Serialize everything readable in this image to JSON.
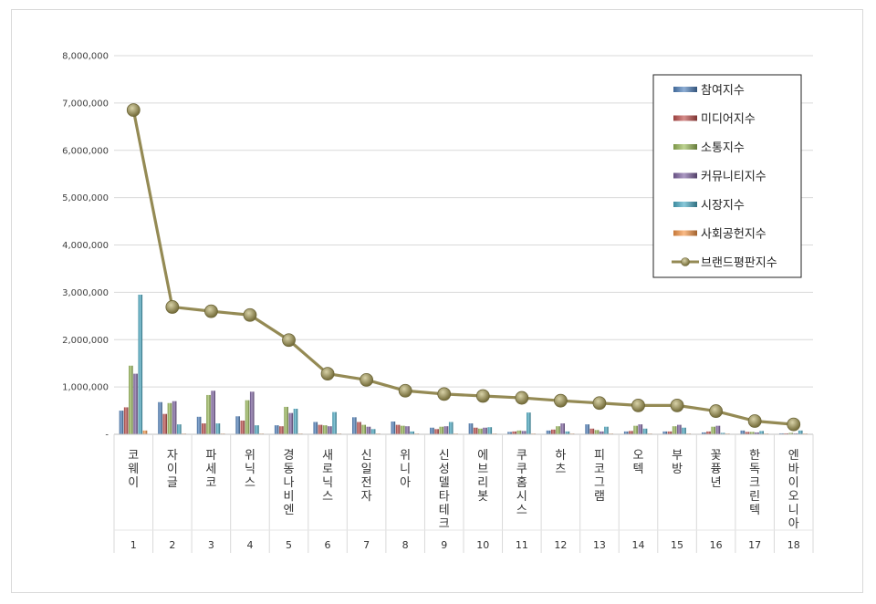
{
  "chart_data": {
    "type": "bar",
    "title": "",
    "xlabel": "",
    "ylabel": "",
    "ylim": [
      0,
      8000000
    ],
    "yticks": [
      0,
      1000000,
      2000000,
      3000000,
      4000000,
      5000000,
      6000000,
      7000000,
      8000000
    ],
    "ytick_labels": [
      "-",
      "1,000,000",
      "2,000,000",
      "3,000,000",
      "4,000,000",
      "5,000,000",
      "6,000,000",
      "7,000,000",
      "8,000,000"
    ],
    "grid": true,
    "legend_position": "top-right",
    "ranks": [
      "1",
      "2",
      "3",
      "4",
      "5",
      "6",
      "7",
      "8",
      "9",
      "10",
      "11",
      "12",
      "13",
      "14",
      "15",
      "16",
      "17",
      "18"
    ],
    "categories": [
      "코웨이",
      "자이글",
      "파세코",
      "위닉스",
      "경동나비엔",
      "새로닉스",
      "신일전자",
      "위니아",
      "신성델타테크",
      "에브리봇",
      "쿠쿠홈시스",
      "하츠",
      "피코그램",
      "오텍",
      "부방",
      "꽃퓽년",
      "한독크린텍",
      "엔바이오니아"
    ],
    "series": [
      {
        "name": "참여지수",
        "type": "bar",
        "color": "#4f81bd",
        "values": [
          500000,
          680000,
          370000,
          380000,
          190000,
          260000,
          360000,
          270000,
          140000,
          230000,
          50000,
          80000,
          210000,
          60000,
          60000,
          40000,
          80000,
          20000
        ]
      },
      {
        "name": "미디어지수",
        "type": "bar",
        "color": "#c0504d",
        "values": [
          570000,
          430000,
          230000,
          290000,
          170000,
          200000,
          260000,
          200000,
          110000,
          140000,
          60000,
          100000,
          120000,
          70000,
          60000,
          60000,
          50000,
          20000
        ]
      },
      {
        "name": "소통지수",
        "type": "bar",
        "color": "#9bbb59",
        "values": [
          1450000,
          660000,
          830000,
          720000,
          580000,
          190000,
          200000,
          180000,
          160000,
          120000,
          80000,
          170000,
          90000,
          180000,
          170000,
          160000,
          50000,
          30000
        ]
      },
      {
        "name": "커뮤니티지수",
        "type": "bar",
        "color": "#8064a2",
        "values": [
          1280000,
          700000,
          920000,
          900000,
          450000,
          170000,
          160000,
          170000,
          170000,
          140000,
          70000,
          230000,
          60000,
          210000,
          200000,
          180000,
          40000,
          20000
        ]
      },
      {
        "name": "시장지수",
        "type": "bar",
        "color": "#4bacc6",
        "values": [
          2950000,
          210000,
          230000,
          190000,
          540000,
          470000,
          110000,
          60000,
          260000,
          150000,
          460000,
          60000,
          160000,
          120000,
          140000,
          30000,
          70000,
          80000
        ]
      },
      {
        "name": "사회공헌지수",
        "type": "bar",
        "color": "#f79646",
        "values": [
          80000,
          10000,
          10000,
          10000,
          10000,
          10000,
          10000,
          10000,
          10000,
          10000,
          10000,
          10000,
          10000,
          10000,
          10000,
          10000,
          10000,
          10000
        ]
      },
      {
        "name": "브랜드평판지수",
        "type": "line",
        "color": "#948a54",
        "values": [
          6850000,
          2690000,
          2600000,
          2520000,
          1990000,
          1280000,
          1150000,
          920000,
          850000,
          810000,
          770000,
          710000,
          660000,
          610000,
          610000,
          490000,
          280000,
          210000
        ]
      }
    ]
  }
}
